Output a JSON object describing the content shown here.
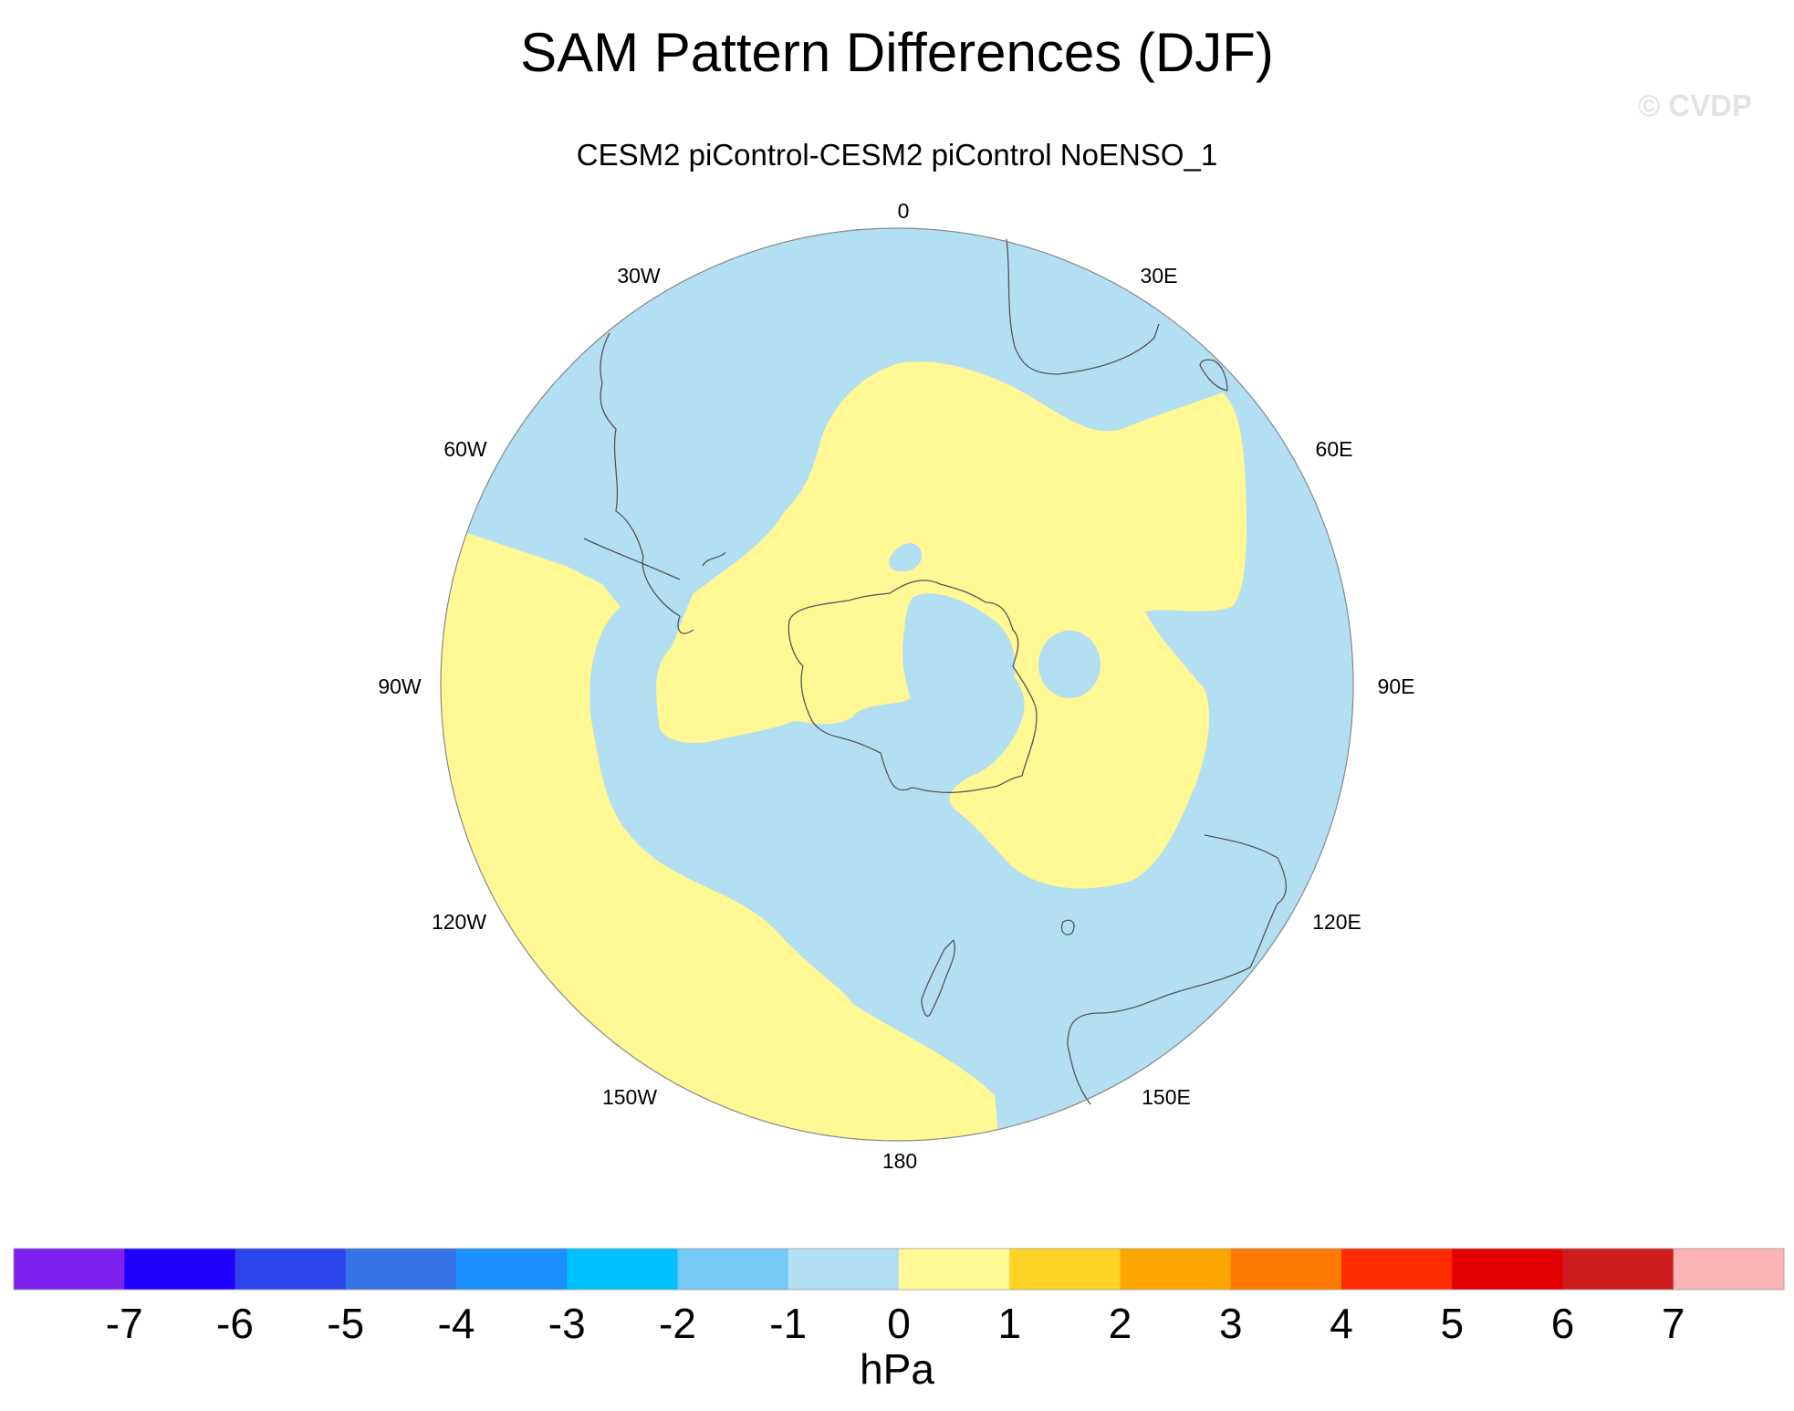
{
  "chart_data": {
    "type": "heatmap",
    "projection": "south-polar-stereographic",
    "title": "SAM Pattern Differences (DJF)",
    "subtitle": "CESM2 piControl-CESM2 piControl NoENSO_1",
    "copyright": "© CVDP",
    "variable_units": "hPa",
    "field_values_present": [
      "-1 to 0",
      "0 to 1"
    ],
    "longitude_labels": [
      "0",
      "30E",
      "60E",
      "90E",
      "120E",
      "150E",
      "180",
      "150W",
      "120W",
      "90W",
      "60W",
      "30W"
    ],
    "colorbar": {
      "label": "hPa",
      "ticks": [
        -7,
        -6,
        -5,
        -4,
        -3,
        -2,
        -1,
        0,
        1,
        2,
        3,
        4,
        5,
        6,
        7
      ],
      "colors": [
        "#7f22f0",
        "#1f00ff",
        "#2b44eb",
        "#3673e6",
        "#1b90ff",
        "#00c1ff",
        "#76c9f3",
        "#b3dff3",
        "#fff894",
        "#fed324",
        "#fea702",
        "#fe7a03",
        "#fe2c00",
        "#e30000",
        "#cc1c1e",
        "#fcb4b4"
      ]
    }
  },
  "colors": {
    "negative_fill": "#b3dff3",
    "positive_fill": "#fff894",
    "coastline": "#555555",
    "copyright_text": "#e3e3e3"
  }
}
